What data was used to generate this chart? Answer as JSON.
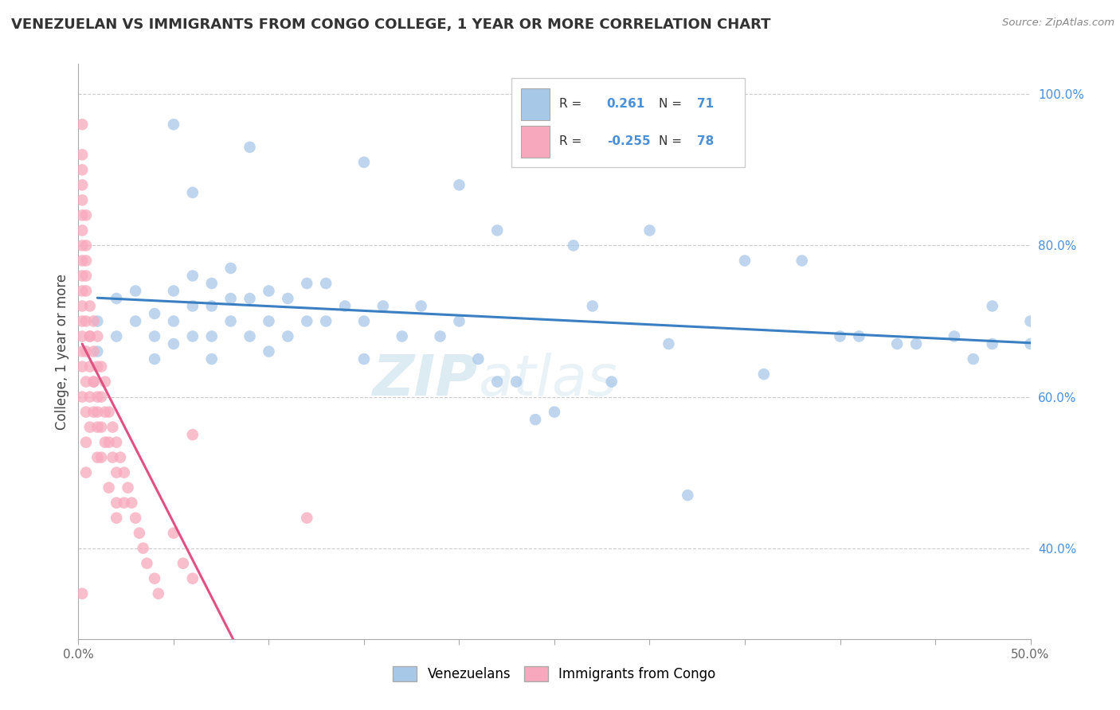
{
  "title": "VENEZUELAN VS IMMIGRANTS FROM CONGO COLLEGE, 1 YEAR OR MORE CORRELATION CHART",
  "source": "Source: ZipAtlas.com",
  "ylabel": "College, 1 year or more",
  "xlim": [
    0.0,
    0.5
  ],
  "ylim": [
    0.28,
    1.04
  ],
  "x_ticks": [
    0.0,
    0.05,
    0.1,
    0.15,
    0.2,
    0.25,
    0.3,
    0.35,
    0.4,
    0.45,
    0.5
  ],
  "x_tick_labels": [
    "0.0%",
    "",
    "",
    "",
    "",
    "",
    "",
    "",
    "",
    "",
    "50.0%"
  ],
  "y_ticks_right": [
    0.4,
    0.6,
    0.8,
    1.0
  ],
  "y_tick_labels_right": [
    "40.0%",
    "60.0%",
    "80.0%",
    "100.0%"
  ],
  "blue_color": "#a8c8e8",
  "pink_color": "#f8a8bc",
  "blue_line_color": "#3a7fc1",
  "pink_line_color": "#e05080",
  "watermark_zip": "ZIP",
  "watermark_atlas": "atlas",
  "blue_scatter_x": [
    0.01,
    0.01,
    0.02,
    0.02,
    0.03,
    0.03,
    0.04,
    0.04,
    0.04,
    0.05,
    0.05,
    0.05,
    0.06,
    0.06,
    0.06,
    0.07,
    0.07,
    0.07,
    0.07,
    0.08,
    0.08,
    0.08,
    0.09,
    0.09,
    0.1,
    0.1,
    0.1,
    0.11,
    0.11,
    0.12,
    0.12,
    0.13,
    0.13,
    0.14,
    0.15,
    0.15,
    0.16,
    0.17,
    0.18,
    0.19,
    0.2,
    0.21,
    0.22,
    0.23,
    0.25,
    0.27,
    0.28,
    0.3,
    0.32,
    0.35,
    0.38,
    0.4,
    0.41,
    0.43,
    0.44,
    0.46,
    0.47,
    0.48,
    0.22,
    0.26,
    0.31,
    0.36,
    0.5,
    0.5,
    0.48,
    0.24,
    0.15,
    0.2,
    0.09,
    0.06,
    0.05
  ],
  "blue_scatter_y": [
    0.66,
    0.7,
    0.68,
    0.73,
    0.7,
    0.74,
    0.65,
    0.68,
    0.71,
    0.67,
    0.7,
    0.74,
    0.68,
    0.72,
    0.76,
    0.65,
    0.68,
    0.72,
    0.75,
    0.7,
    0.73,
    0.77,
    0.68,
    0.73,
    0.66,
    0.7,
    0.74,
    0.68,
    0.73,
    0.7,
    0.75,
    0.7,
    0.75,
    0.72,
    0.65,
    0.7,
    0.72,
    0.68,
    0.72,
    0.68,
    0.7,
    0.65,
    0.62,
    0.62,
    0.58,
    0.72,
    0.62,
    0.82,
    0.47,
    0.78,
    0.78,
    0.68,
    0.68,
    0.67,
    0.67,
    0.68,
    0.65,
    0.67,
    0.82,
    0.8,
    0.67,
    0.63,
    0.67,
    0.7,
    0.72,
    0.57,
    0.91,
    0.88,
    0.93,
    0.87,
    0.96
  ],
  "pink_scatter_x": [
    0.002,
    0.002,
    0.002,
    0.002,
    0.002,
    0.002,
    0.002,
    0.002,
    0.002,
    0.002,
    0.004,
    0.004,
    0.004,
    0.004,
    0.004,
    0.004,
    0.004,
    0.004,
    0.006,
    0.006,
    0.006,
    0.006,
    0.006,
    0.008,
    0.008,
    0.008,
    0.008,
    0.01,
    0.01,
    0.01,
    0.01,
    0.01,
    0.012,
    0.012,
    0.012,
    0.014,
    0.014,
    0.014,
    0.016,
    0.016,
    0.018,
    0.018,
    0.02,
    0.02,
    0.02,
    0.022,
    0.024,
    0.024,
    0.026,
    0.028,
    0.03,
    0.032,
    0.034,
    0.036,
    0.04,
    0.042,
    0.05,
    0.055,
    0.06,
    0.002,
    0.002,
    0.002,
    0.002,
    0.002,
    0.002,
    0.002,
    0.004,
    0.004,
    0.004,
    0.006,
    0.008,
    0.01,
    0.012,
    0.016,
    0.02,
    0.06,
    0.12,
    0.002
  ],
  "pink_scatter_y": [
    0.96,
    0.92,
    0.88,
    0.84,
    0.8,
    0.76,
    0.72,
    0.68,
    0.64,
    0.6,
    0.78,
    0.74,
    0.7,
    0.66,
    0.62,
    0.58,
    0.54,
    0.5,
    0.72,
    0.68,
    0.64,
    0.6,
    0.56,
    0.7,
    0.66,
    0.62,
    0.58,
    0.68,
    0.64,
    0.6,
    0.56,
    0.52,
    0.64,
    0.6,
    0.56,
    0.62,
    0.58,
    0.54,
    0.58,
    0.54,
    0.56,
    0.52,
    0.54,
    0.5,
    0.46,
    0.52,
    0.5,
    0.46,
    0.48,
    0.46,
    0.44,
    0.42,
    0.4,
    0.38,
    0.36,
    0.34,
    0.42,
    0.38,
    0.36,
    0.9,
    0.86,
    0.82,
    0.78,
    0.74,
    0.7,
    0.66,
    0.84,
    0.8,
    0.76,
    0.68,
    0.62,
    0.58,
    0.52,
    0.48,
    0.44,
    0.55,
    0.44,
    0.34
  ]
}
